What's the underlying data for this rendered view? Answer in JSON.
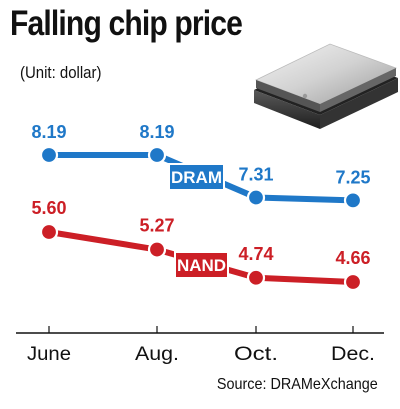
{
  "chart_data": {
    "type": "line",
    "title": "Falling chip price",
    "subtitle": "(Unit: dollar)",
    "source": "Source: DRAMeXchange",
    "categories": [
      "June",
      "Aug.",
      "Oct.",
      "Dec."
    ],
    "series": [
      {
        "name": "DRAM",
        "values": [
          8.19,
          8.19,
          7.31,
          7.25
        ],
        "color": "#1f78c8",
        "value_labels": [
          "8.19",
          "8.19",
          "7.31",
          "7.25"
        ]
      },
      {
        "name": "NAND",
        "values": [
          5.6,
          5.27,
          4.74,
          4.66
        ],
        "color": "#cc1f26",
        "value_labels": [
          "5.60",
          "5.27",
          "4.74",
          "4.66"
        ]
      }
    ],
    "legend": "inline labels on lines",
    "grid": false,
    "image": "chip-icon"
  }
}
